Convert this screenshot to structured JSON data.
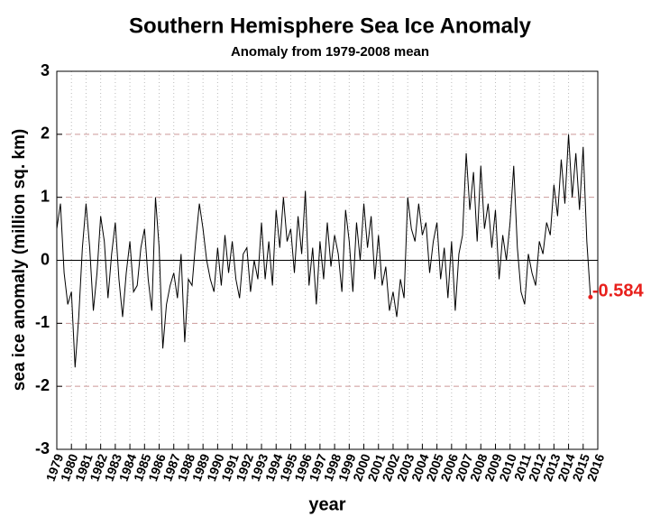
{
  "chart_data": {
    "type": "line",
    "title": "Southern Hemisphere Sea Ice Anomaly",
    "subtitle": "Anomaly from 1979-2008 mean",
    "xlabel": "year",
    "ylabel": "sea ice anomaly (million sq. km)",
    "annotation": "-0.584",
    "annotation_color": "#e8201c",
    "x": [
      1979,
      1979.25,
      1979.5,
      1979.75,
      1980,
      1980.25,
      1980.5,
      1980.75,
      1981,
      1981.25,
      1981.5,
      1981.75,
      1982,
      1982.25,
      1982.5,
      1982.75,
      1983,
      1983.25,
      1983.5,
      1983.75,
      1984,
      1984.25,
      1984.5,
      1984.75,
      1985,
      1985.25,
      1985.5,
      1985.75,
      1986,
      1986.25,
      1986.5,
      1986.75,
      1987,
      1987.25,
      1987.5,
      1987.75,
      1988,
      1988.25,
      1988.5,
      1988.75,
      1989,
      1989.25,
      1989.5,
      1989.75,
      1990,
      1990.25,
      1990.5,
      1990.75,
      1991,
      1991.25,
      1991.5,
      1991.75,
      1992,
      1992.25,
      1992.5,
      1992.75,
      1993,
      1993.25,
      1993.5,
      1993.75,
      1994,
      1994.25,
      1994.5,
      1994.75,
      1995,
      1995.25,
      1995.5,
      1995.75,
      1996,
      1996.25,
      1996.5,
      1996.75,
      1997,
      1997.25,
      1997.5,
      1997.75,
      1998,
      1998.25,
      1998.5,
      1998.75,
      1999,
      1999.25,
      1999.5,
      1999.75,
      2000,
      2000.25,
      2000.5,
      2000.75,
      2001,
      2001.25,
      2001.5,
      2001.75,
      2002,
      2002.25,
      2002.5,
      2002.75,
      2003,
      2003.25,
      2003.5,
      2003.75,
      2004,
      2004.25,
      2004.5,
      2004.75,
      2005,
      2005.25,
      2005.5,
      2005.75,
      2006,
      2006.25,
      2006.5,
      2006.75,
      2007,
      2007.25,
      2007.5,
      2007.75,
      2008,
      2008.25,
      2008.5,
      2008.75,
      2009,
      2009.25,
      2009.5,
      2009.75,
      2010,
      2010.25,
      2010.5,
      2010.75,
      2011,
      2011.25,
      2011.5,
      2011.75,
      2012,
      2012.25,
      2012.5,
      2012.75,
      2013,
      2013.25,
      2013.5,
      2013.75,
      2014,
      2014.25,
      2014.5,
      2014.75,
      2015,
      2015.25,
      2015.5
    ],
    "series": [
      {
        "name": "anomaly",
        "color": "#000000",
        "values": [
          0.5,
          0.9,
          -0.2,
          -0.7,
          -0.5,
          -1.7,
          -0.9,
          0.2,
          0.9,
          0.2,
          -0.8,
          -0.2,
          0.7,
          0.3,
          -0.6,
          0.1,
          0.6,
          -0.3,
          -0.9,
          -0.2,
          0.3,
          -0.5,
          -0.4,
          0.2,
          0.5,
          -0.3,
          -0.8,
          1.0,
          0.2,
          -1.4,
          -0.7,
          -0.4,
          -0.2,
          -0.6,
          0.1,
          -1.3,
          -0.3,
          -0.4,
          0.3,
          0.9,
          0.5,
          0.0,
          -0.3,
          -0.5,
          0.2,
          -0.4,
          0.4,
          -0.2,
          0.3,
          -0.3,
          -0.6,
          0.1,
          0.2,
          -0.5,
          0.0,
          -0.3,
          0.6,
          -0.3,
          0.3,
          -0.4,
          0.8,
          0.2,
          1.0,
          0.3,
          0.5,
          -0.2,
          0.7,
          0.1,
          1.1,
          -0.4,
          0.2,
          -0.7,
          0.3,
          -0.3,
          0.6,
          -0.1,
          0.4,
          0.1,
          -0.5,
          0.8,
          0.3,
          -0.5,
          0.6,
          0.0,
          0.9,
          0.2,
          0.7,
          -0.3,
          0.4,
          -0.4,
          -0.1,
          -0.8,
          -0.5,
          -0.9,
          -0.3,
          -0.6,
          1.0,
          0.5,
          0.3,
          0.9,
          0.4,
          0.6,
          -0.2,
          0.3,
          0.6,
          -0.3,
          0.2,
          -0.6,
          0.3,
          -0.8,
          0.1,
          0.4,
          1.7,
          0.8,
          1.4,
          0.3,
          1.5,
          0.5,
          0.9,
          0.2,
          0.8,
          -0.3,
          0.4,
          0.0,
          0.6,
          1.5,
          0.2,
          -0.5,
          -0.7,
          0.1,
          -0.2,
          -0.4,
          0.3,
          0.1,
          0.6,
          0.4,
          1.2,
          0.7,
          1.6,
          0.9,
          2.0,
          1.0,
          1.7,
          0.8,
          1.8,
          0.3,
          -0.584
        ]
      }
    ],
    "xlim": [
      1979,
      2016
    ],
    "xticks": [
      1979,
      1980,
      1981,
      1982,
      1983,
      1984,
      1985,
      1986,
      1987,
      1988,
      1989,
      1990,
      1991,
      1992,
      1993,
      1994,
      1995,
      1996,
      1997,
      1998,
      1999,
      2000,
      2001,
      2002,
      2003,
      2004,
      2005,
      2006,
      2007,
      2008,
      2009,
      2010,
      2011,
      2012,
      2013,
      2014,
      2015,
      2016
    ],
    "ylim": [
      -3,
      3
    ],
    "yticks": [
      -3,
      -2,
      -1,
      0,
      1,
      2,
      3
    ],
    "grid": true
  }
}
